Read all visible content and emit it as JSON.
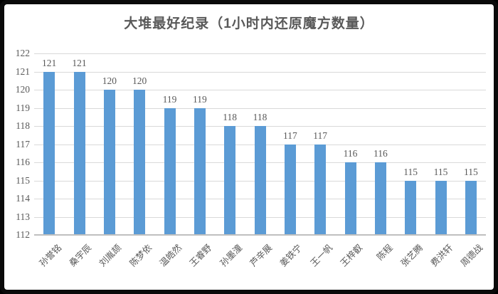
{
  "frame": {
    "background": "#ffffff",
    "border_color": "#0a0a0a"
  },
  "chart_data": {
    "type": "bar",
    "title": "大堆最好纪录（1小时内还原魔方数量）",
    "categories": [
      "孙誉铭",
      "桑宇辰",
      "刘胤颉",
      "陈梦依",
      "温皓然",
      "王睿野",
      "孙墨潼",
      "芦辛展",
      "姜铁宁",
      "王一帆",
      "王梓叡",
      "陈程",
      "张艺腾",
      "费洪轩",
      "周德战"
    ],
    "values": [
      121,
      121,
      120,
      120,
      119,
      119,
      118,
      118,
      117,
      117,
      116,
      116,
      115,
      115,
      115
    ],
    "xlabel": "",
    "ylabel": "",
    "ylim": [
      112,
      122
    ],
    "ytick_step": 1,
    "yticks": [
      112,
      113,
      114,
      115,
      116,
      117,
      118,
      119,
      120,
      121,
      122
    ],
    "grid": true,
    "legend": false,
    "data_labels": true,
    "bar_color": "#5b9bd5",
    "text_color": "#595959",
    "gridline_color": "#d9d9d9",
    "axis_line_color": "#bfbfbf"
  }
}
